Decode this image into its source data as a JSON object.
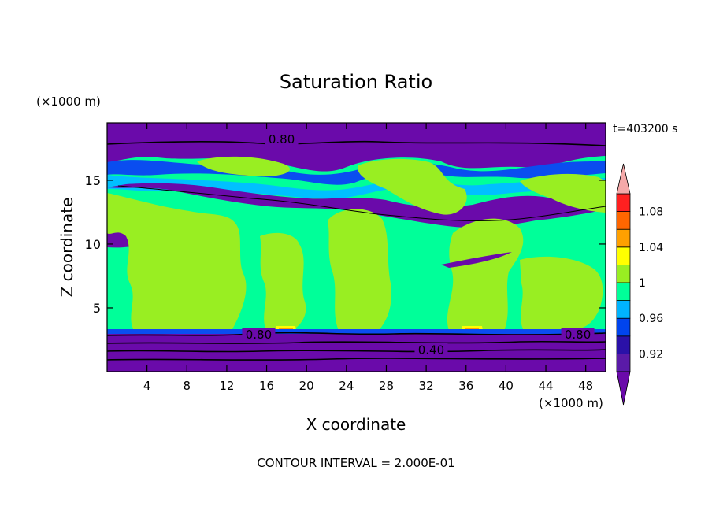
{
  "chart_data": {
    "type": "heatmap",
    "title": "Saturation Ratio",
    "xlabel": "X coordinate",
    "ylabel": "Z coordinate",
    "x_unit": "(×1000 m)",
    "y_unit": "(×1000 m)",
    "time_label": "t=403200 s",
    "footer": "CONTOUR INTERVAL = 2.000E-01",
    "xlim": [
      0,
      50
    ],
    "ylim": [
      0,
      19.5
    ],
    "x_ticks": [
      "4",
      "8",
      "12",
      "16",
      "20",
      "24",
      "28",
      "32",
      "36",
      "40",
      "44",
      "48"
    ],
    "y_ticks": [
      "5",
      "10",
      "15"
    ],
    "x_tick_values": [
      4,
      8,
      12,
      16,
      20,
      24,
      28,
      32,
      36,
      40,
      44,
      48
    ],
    "y_tick_values": [
      5,
      10,
      15
    ],
    "contour_labels": [
      {
        "text": "0.80",
        "x": 17.5,
        "y": 18.2
      },
      {
        "text": "0.80",
        "x": 15.2,
        "y": 2.9
      },
      {
        "text": "0.40",
        "x": 32.5,
        "y": 1.7
      },
      {
        "text": "0.80",
        "x": 47.2,
        "y": 2.9
      }
    ],
    "colorbar": {
      "labels": [
        "0.92",
        "0.96",
        "1",
        "1.04",
        "1.08"
      ],
      "levels": [
        0.9,
        0.92,
        0.94,
        0.96,
        0.98,
        1.0,
        1.02,
        1.04,
        1.06,
        1.08,
        1.1
      ],
      "colors": [
        "#5a1aa8",
        "#2a11a8",
        "#0044ee",
        "#00b4ff",
        "#00ff99",
        "#99ee22",
        "#ffff00",
        "#ffa000",
        "#ff6600",
        "#ff2020"
      ],
      "under_color": "#6a0aaa",
      "over_color": "#f4a9a9"
    },
    "colors": {
      "stratosphere": "#6a0aaa",
      "upper_blue": "#0a4df0",
      "cyan": "#00c0ff",
      "cloud_green": "#00ff99",
      "lime": "#99ee22",
      "lower_purple": "#6a0aaa",
      "yellow": "#ffff00",
      "orange": "#ffa000"
    }
  }
}
